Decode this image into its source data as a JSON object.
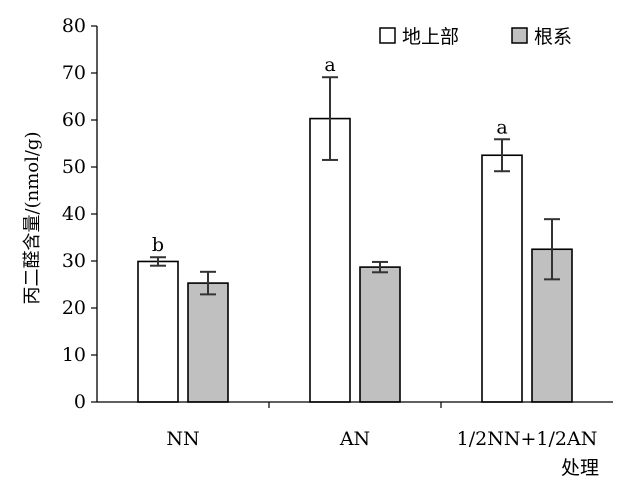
{
  "chart_data": {
    "type": "bar",
    "categories": [
      "NN",
      "AN",
      "1/2NN+1/2AN"
    ],
    "series": [
      {
        "name": "地上部",
        "values": [
          29.9,
          60.3,
          52.5
        ],
        "errors": [
          0.9,
          8.8,
          3.4
        ],
        "letters": [
          "b",
          "a",
          "a"
        ],
        "fill": "#ffffff"
      },
      {
        "name": "根系",
        "values": [
          25.3,
          28.7,
          32.5
        ],
        "errors": [
          2.4,
          1.1,
          6.4
        ],
        "letters": [
          "",
          "",
          ""
        ],
        "fill": "#c0c0c0"
      }
    ],
    "xlabel": "处理",
    "ylabel": "丙二醛含量/(nmol/g)",
    "ylim": [
      0,
      80
    ],
    "yticks": [
      0,
      10,
      20,
      30,
      40,
      50,
      60,
      70,
      80
    ],
    "grid": false,
    "legend_position": "top-right"
  }
}
